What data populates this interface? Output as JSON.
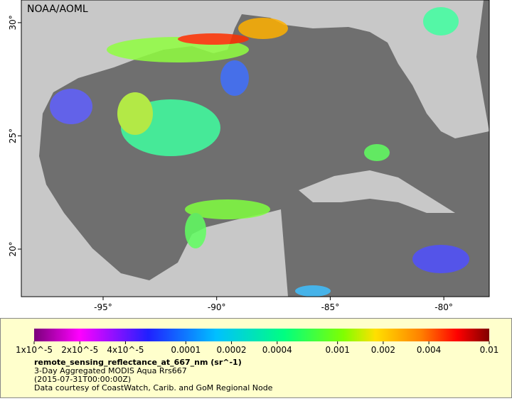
{
  "watermark": "NOAA/AOML",
  "map": {
    "xlim": [
      -98.6,
      -78
    ],
    "ylim": [
      17.9,
      31
    ],
    "xticks": [
      {
        "value": -95,
        "label": "-95°"
      },
      {
        "value": -90,
        "label": "-90°"
      },
      {
        "value": -85,
        "label": "-85°"
      },
      {
        "value": -80,
        "label": "-80°"
      }
    ],
    "yticks": [
      {
        "value": 20,
        "label": "20°"
      },
      {
        "value": 25,
        "label": "25°"
      },
      {
        "value": 30,
        "label": "30°"
      }
    ]
  },
  "colorbar": {
    "scale": "log",
    "lim": [
      1e-05,
      0.01
    ],
    "ticks": [
      {
        "value": 1e-05,
        "label": "1x10^-5"
      },
      {
        "value": 2e-05,
        "label": "2x10^-5"
      },
      {
        "value": 4e-05,
        "label": "4x10^-5"
      },
      0.0001,
      0.0002,
      0.0004,
      0.001,
      0.002,
      0.004,
      0.01
    ]
  },
  "caption": {
    "variable": "remote_sensing_reflectance_at_667_nm (sr^-1)",
    "lines": [
      "3-Day Aggregated MODIS Aqua Rrs667",
      "(2015-07-31T00:00:00Z)",
      "Data courtesy of CoastWatch, Carib. and GoM Regional Node"
    ]
  }
}
